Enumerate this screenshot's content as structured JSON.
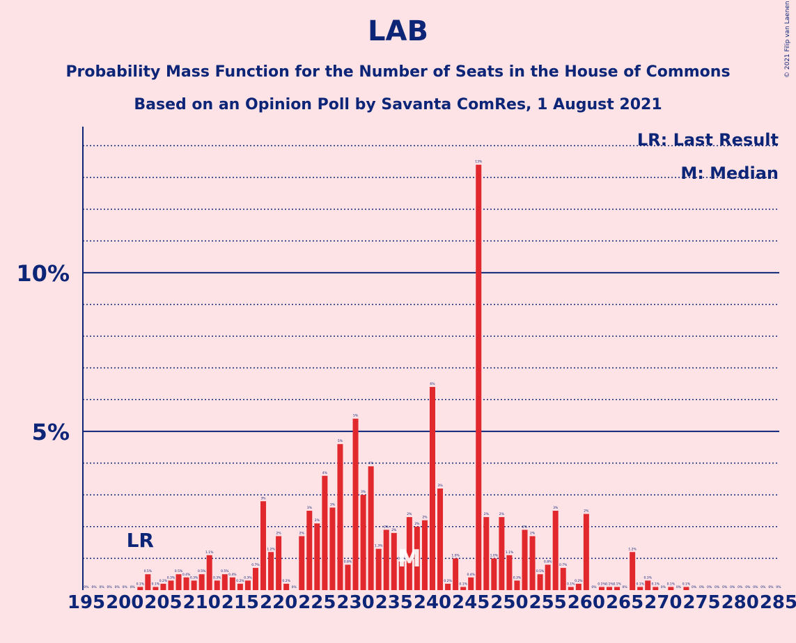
{
  "header": {
    "title": "LAB",
    "subtitle": "Probability Mass Function for the Number of Seats in the House of Commons",
    "caption": "Based on an Opinion Poll by Savanta ComRes, 1 August 2021",
    "copyright": "© 2021 Filip van Laenen"
  },
  "legend": {
    "last_result": "LR: Last Result",
    "median": "M: Median"
  },
  "colors": {
    "background": "#fde2e6",
    "bar": "#e0282d",
    "text": "#0c2577"
  },
  "chart_data": {
    "type": "bar",
    "x": [
      195,
      196,
      197,
      198,
      199,
      200,
      201,
      202,
      203,
      204,
      205,
      206,
      207,
      208,
      209,
      210,
      211,
      212,
      213,
      214,
      215,
      216,
      217,
      218,
      219,
      220,
      221,
      222,
      223,
      224,
      225,
      226,
      227,
      228,
      229,
      230,
      231,
      232,
      233,
      234,
      235,
      236,
      237,
      238,
      239,
      240,
      241,
      242,
      243,
      244,
      245,
      246,
      247,
      248,
      249,
      250,
      251,
      252,
      253,
      254,
      255,
      256,
      257,
      258,
      259,
      260,
      261,
      262,
      263,
      264,
      265,
      266,
      267,
      268,
      269,
      270,
      271,
      272,
      273,
      274,
      275,
      276,
      277,
      278,
      279,
      280,
      281,
      282,
      283,
      284,
      285
    ],
    "values": [
      0,
      0,
      0,
      0,
      0,
      0,
      0,
      0.1,
      0.5,
      0.1,
      0.2,
      0.3,
      0.5,
      0.4,
      0.3,
      0.5,
      1.1,
      0.3,
      0.5,
      0.4,
      0.2,
      0.3,
      0.7,
      2.8,
      1.2,
      1.7,
      0.2,
      0,
      1.7,
      2.5,
      2.1,
      3.6,
      2.6,
      4.6,
      0.8,
      5.4,
      3.0,
      3.9,
      1.3,
      1.9,
      1.8,
      0.9,
      2.3,
      2.0,
      2.2,
      6.4,
      3.2,
      0.2,
      1.0,
      0.1,
      0.4,
      13.4,
      2.3,
      1.0,
      2.3,
      1.1,
      0.3,
      1.9,
      1.7,
      0.5,
      0.8,
      2.5,
      0.7,
      0.1,
      0.2,
      2.4,
      0,
      0.1,
      0.1,
      0.1,
      0,
      1.2,
      0.1,
      0.3,
      0.1,
      0,
      0.1,
      0,
      0.1,
      0,
      0,
      0,
      0,
      0,
      0,
      0,
      0,
      0,
      0,
      0,
      0
    ],
    "labels": [
      "0%",
      "0%",
      "0%",
      "0%",
      "0%",
      "0%",
      "0%",
      "0.1%",
      "0.5%",
      "0.1%",
      "0.2%",
      "0.3%",
      "0.5%",
      "0.4%",
      "0.3%",
      "0.5%",
      "1.1%",
      "0.3%",
      "0.5%",
      "0.4%",
      "0.2%",
      "0.3%",
      "0.7%",
      "3%",
      "1.2%",
      "2%",
      "0.2%",
      "0%",
      "2%",
      "3%",
      "2%",
      "4%",
      "3%",
      "5%",
      "0.8%",
      "5%",
      "3%",
      "4%",
      "1.3%",
      "2%",
      "2%",
      "0.9%",
      "2%",
      "2%",
      "2%",
      "6%",
      "3%",
      "0.2%",
      "1.0%",
      "0.1%",
      "0.4%",
      "13%",
      "2%",
      "1.0%",
      "2%",
      "1.1%",
      "0.3%",
      "2%",
      "2%",
      "0.5%",
      "0.8%",
      "3%",
      "0.7%",
      "0.1%",
      "0.2%",
      "2%",
      "0%",
      "0.1%",
      "0.1%",
      "0.1%",
      "0%",
      "1.2%",
      "0.1%",
      "0.3%",
      "0.1%",
      "0%",
      "0.1%",
      "0%",
      "0.1%",
      "0%",
      "0%",
      "0%",
      "0%",
      "0%",
      "0%",
      "0%",
      "0%",
      "0%",
      "0%",
      "0%",
      "0%"
    ],
    "x_ticks": [
      "195",
      "200",
      "205",
      "210",
      "215",
      "220",
      "225",
      "230",
      "235",
      "240",
      "245",
      "250",
      "255",
      "260",
      "265",
      "270",
      "275",
      "280",
      "285"
    ],
    "y_ticks": [
      "5%",
      "10%"
    ],
    "ylim": [
      0,
      14.6
    ],
    "grid": "dotted every 1%, solid every 5%",
    "last_result_seat": 202,
    "last_result_marker": "LR",
    "median_seat": 237,
    "median_marker": "M",
    "legend_placement": "top-right"
  }
}
